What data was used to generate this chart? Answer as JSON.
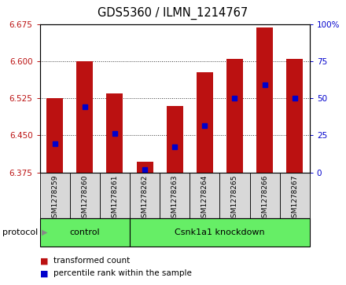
{
  "title": "GDS5360 / ILMN_1214767",
  "samples": [
    "GSM1278259",
    "GSM1278260",
    "GSM1278261",
    "GSM1278262",
    "GSM1278263",
    "GSM1278264",
    "GSM1278265",
    "GSM1278266",
    "GSM1278267"
  ],
  "bar_values": [
    6.526,
    6.6,
    6.535,
    6.397,
    6.51,
    6.578,
    6.605,
    6.668,
    6.605
  ],
  "bar_bottom": 6.375,
  "blue_marker_values": [
    6.433,
    6.508,
    6.454,
    6.381,
    6.427,
    6.47,
    6.525,
    6.553,
    6.526
  ],
  "ylim": [
    6.375,
    6.675
  ],
  "y_ticks": [
    6.375,
    6.45,
    6.525,
    6.6,
    6.675
  ],
  "y2_ticks": [
    0,
    25,
    50,
    75,
    100
  ],
  "y2_tick_labels": [
    "0",
    "25",
    "50",
    "75",
    "100%"
  ],
  "bar_color": "#bb1111",
  "blue_color": "#0000cc",
  "bar_width": 0.55,
  "ctrl_count": 3,
  "kd_count": 6,
  "groups": [
    {
      "label": "control",
      "color": "#66ee66"
    },
    {
      "label": "Csnk1a1 knockdown",
      "color": "#66ee66"
    }
  ],
  "protocol_label": "protocol",
  "legend_items": [
    {
      "label": "transformed count",
      "color": "#bb1111"
    },
    {
      "label": "percentile rank within the sample",
      "color": "#0000cc"
    }
  ],
  "grid_linestyle": ":",
  "grid_color": "#333333",
  "title_fontsize": 10.5,
  "tick_fontsize": 7.5,
  "sample_label_fontsize": 6.5,
  "legend_fontsize": 7.5
}
